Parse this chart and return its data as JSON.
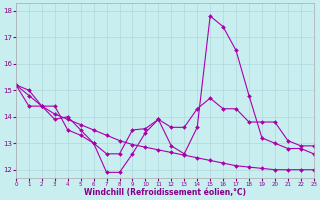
{
  "xlabel": "Windchill (Refroidissement éolien,°C)",
  "xlim": [
    0,
    23
  ],
  "ylim": [
    11.7,
    18.3
  ],
  "yticks": [
    12,
    13,
    14,
    15,
    16,
    17,
    18
  ],
  "xticks": [
    0,
    1,
    2,
    3,
    4,
    5,
    6,
    7,
    8,
    9,
    10,
    11,
    12,
    13,
    14,
    15,
    16,
    17,
    18,
    19,
    20,
    21,
    22,
    23
  ],
  "background_color": "#c8eef0",
  "grid_color": "#b0d8dc",
  "line_color": "#aa00aa",
  "line1_y": [
    15.2,
    15.0,
    14.4,
    14.4,
    13.5,
    13.3,
    13.0,
    12.6,
    12.6,
    13.5,
    13.55,
    13.9,
    13.6,
    13.6,
    14.3,
    14.7,
    14.3,
    14.3,
    13.8,
    13.8,
    13.8,
    13.1,
    12.9,
    12.9
  ],
  "line2_y": [
    15.2,
    14.4,
    14.4,
    13.9,
    14.0,
    13.5,
    13.0,
    11.9,
    11.9,
    12.6,
    13.4,
    13.9,
    12.9,
    12.6,
    13.6,
    17.8,
    17.4,
    16.5,
    14.8,
    13.2,
    13.0,
    12.8,
    12.8,
    12.6
  ],
  "line3_y": [
    15.2,
    14.8,
    14.4,
    14.1,
    13.9,
    13.7,
    13.5,
    13.3,
    13.1,
    12.95,
    12.85,
    12.75,
    12.65,
    12.55,
    12.45,
    12.35,
    12.25,
    12.15,
    12.1,
    12.05,
    12.0,
    12.0,
    12.0,
    12.0
  ]
}
